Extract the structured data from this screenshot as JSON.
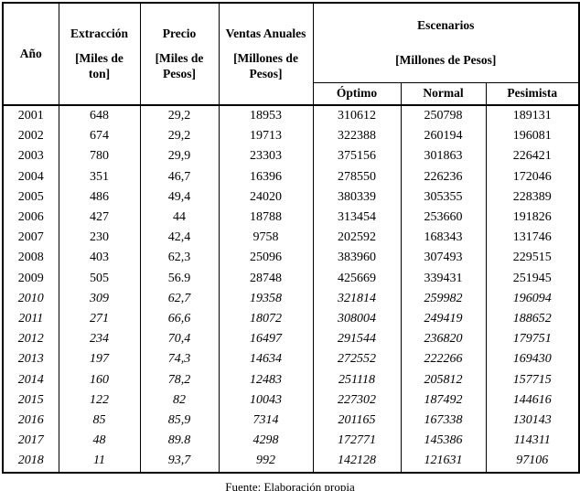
{
  "colors": {
    "border": "#000000",
    "text": "#000000",
    "background": "#ffffff"
  },
  "table": {
    "header": {
      "col_ano": "Año",
      "col_extraccion_title": "Extracción",
      "col_extraccion_unit": "[Miles de ton]",
      "col_precio_title": "Precio",
      "col_precio_unit": "[Miles de Pesos]",
      "col_ventas_title": "Ventas Anuales",
      "col_ventas_unit": "[Millones de Pesos]",
      "group_escenarios_title": "Escenarios",
      "group_escenarios_unit": "[Millones de Pesos]",
      "sub_optimo": "Óptimo",
      "sub_normal": "Normal",
      "sub_pesimista": "Pesimista"
    },
    "columns_order": [
      "year",
      "extraccion",
      "precio",
      "ventas",
      "optimo",
      "normal",
      "pesimista"
    ],
    "rows": [
      {
        "year": "2001",
        "extraccion": "648",
        "precio": "29,2",
        "ventas": "18953",
        "optimo": "310612",
        "normal": "250798",
        "pesimista": "189131",
        "italic": false
      },
      {
        "year": "2002",
        "extraccion": "674",
        "precio": "29,2",
        "ventas": "19713",
        "optimo": "322388",
        "normal": "260194",
        "pesimista": "196081",
        "italic": false
      },
      {
        "year": "2003",
        "extraccion": "780",
        "precio": "29,9",
        "ventas": "23303",
        "optimo": "375156",
        "normal": "301863",
        "pesimista": "226421",
        "italic": false
      },
      {
        "year": "2004",
        "extraccion": "351",
        "precio": "46,7",
        "ventas": "16396",
        "optimo": "278550",
        "normal": "226236",
        "pesimista": "172046",
        "italic": false
      },
      {
        "year": "2005",
        "extraccion": "486",
        "precio": "49,4",
        "ventas": "24020",
        "optimo": "380339",
        "normal": "305355",
        "pesimista": "228389",
        "italic": false
      },
      {
        "year": "2006",
        "extraccion": "427",
        "precio": "44",
        "ventas": "18788",
        "optimo": "313454",
        "normal": "253660",
        "pesimista": "191826",
        "italic": false
      },
      {
        "year": "2007",
        "extraccion": "230",
        "precio": "42,4",
        "ventas": "9758",
        "optimo": "202592",
        "normal": "168343",
        "pesimista": "131746",
        "italic": false
      },
      {
        "year": "2008",
        "extraccion": "403",
        "precio": "62,3",
        "ventas": "25096",
        "optimo": "383960",
        "normal": "307493",
        "pesimista": "229515",
        "italic": false
      },
      {
        "year": "2009",
        "extraccion": "505",
        "precio": "56.9",
        "ventas": "28748",
        "optimo": "425669",
        "normal": "339431",
        "pesimista": "251945",
        "italic": false
      },
      {
        "year": "2010",
        "extraccion": "309",
        "precio": "62,7",
        "ventas": "19358",
        "optimo": "321814",
        "normal": "259982",
        "pesimista": "196094",
        "italic": true
      },
      {
        "year": "2011",
        "extraccion": "271",
        "precio": "66,6",
        "ventas": "18072",
        "optimo": "308004",
        "normal": "249419",
        "pesimista": "188652",
        "italic": true
      },
      {
        "year": "2012",
        "extraccion": "234",
        "precio": "70,4",
        "ventas": "16497",
        "optimo": "291544",
        "normal": "236820",
        "pesimista": "179751",
        "italic": true
      },
      {
        "year": "2013",
        "extraccion": "197",
        "precio": "74,3",
        "ventas": "14634",
        "optimo": "272552",
        "normal": "222266",
        "pesimista": "169430",
        "italic": true
      },
      {
        "year": "2014",
        "extraccion": "160",
        "precio": "78,2",
        "ventas": "12483",
        "optimo": "251118",
        "normal": "205812",
        "pesimista": "157715",
        "italic": true
      },
      {
        "year": "2015",
        "extraccion": "122",
        "precio": "82",
        "ventas": "10043",
        "optimo": "227302",
        "normal": "187492",
        "pesimista": "144616",
        "italic": true
      },
      {
        "year": "2016",
        "extraccion": "85",
        "precio": "85,9",
        "ventas": "7314",
        "optimo": "201165",
        "normal": "167338",
        "pesimista": "130143",
        "italic": true
      },
      {
        "year": "2017",
        "extraccion": "48",
        "precio": "89.8",
        "ventas": "4298",
        "optimo": "172771",
        "normal": "145386",
        "pesimista": "114311",
        "italic": true
      },
      {
        "year": "2018",
        "extraccion": "11",
        "precio": "93,7",
        "ventas": "992",
        "optimo": "142128",
        "normal": "121631",
        "pesimista": "97106",
        "italic": true
      }
    ]
  },
  "footer": {
    "source": "Fuente: Elaboración propia"
  }
}
